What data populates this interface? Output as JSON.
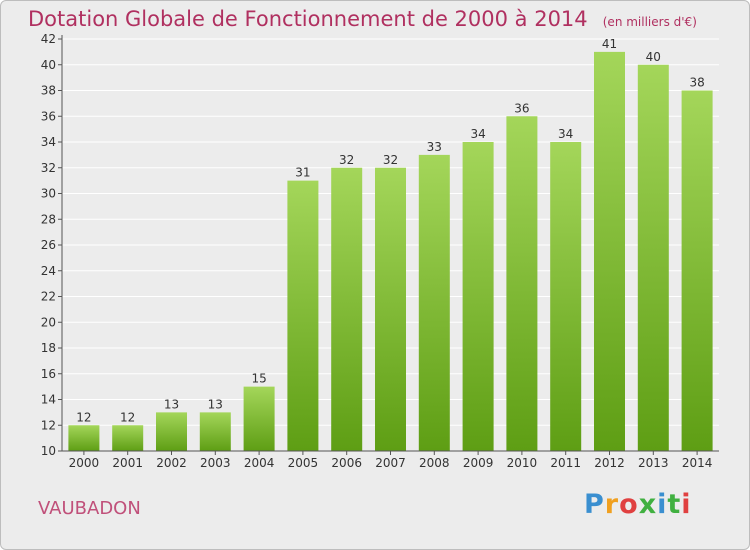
{
  "header": {
    "title": "Dotation Globale de Fonctionnement de 2000 à 2014",
    "unit": "(en milliers d'€)"
  },
  "footer": {
    "commune": "VAUBADON",
    "logo_text": "Proxiti"
  },
  "colors": {
    "title": "#b03060",
    "bar_light": "#a4d65a",
    "bar_dark": "#5e9e14",
    "grid": "#ffffff",
    "background": "#ececec"
  },
  "chart_data": {
    "type": "bar",
    "title": "Dotation Globale de Fonctionnement de 2000 à 2014",
    "xlabel": "",
    "ylabel": "",
    "categories": [
      "2000",
      "2001",
      "2002",
      "2003",
      "2004",
      "2005",
      "2006",
      "2007",
      "2008",
      "2009",
      "2010",
      "2011",
      "2012",
      "2013",
      "2014"
    ],
    "values": [
      12,
      12,
      13,
      13,
      15,
      31,
      32,
      32,
      33,
      34,
      36,
      34,
      41,
      40,
      38
    ],
    "ylim": [
      10,
      42
    ],
    "yticks": [
      10,
      12,
      14,
      16,
      18,
      20,
      22,
      24,
      26,
      28,
      30,
      32,
      34,
      36,
      38,
      40,
      42
    ],
    "grid": true,
    "legend": "none"
  }
}
